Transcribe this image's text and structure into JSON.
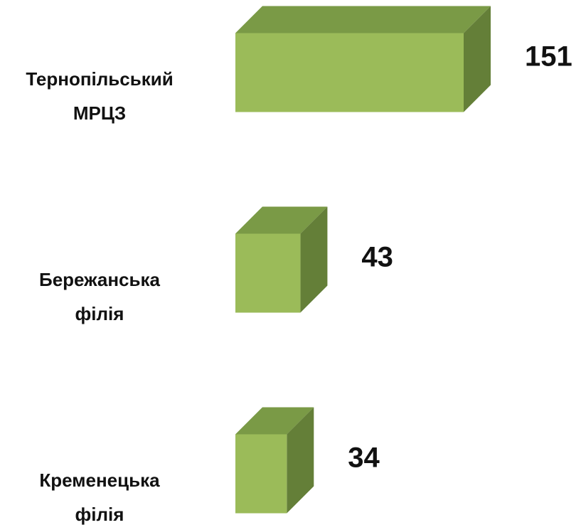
{
  "chart_data": {
    "type": "bar3d_horizontal",
    "categories": [
      "Тернопільський\nМРЦЗ",
      "Бережанська\nфілія",
      "Кременецька\nфілія"
    ],
    "values": [
      151,
      43,
      34
    ],
    "color": "#9bbb59",
    "top_color": "#7a9a46",
    "side_color": "#647f38"
  }
}
